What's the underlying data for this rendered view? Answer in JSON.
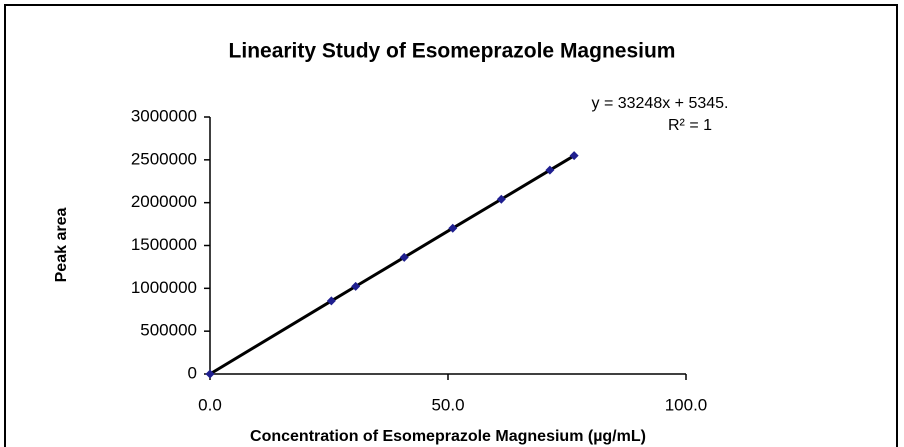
{
  "chart_data": {
    "type": "scatter",
    "title": "Linearity Study of Esomeprazole Magnesium",
    "x_label": "Concentration of  Esomeprazole Magnesium (µg/mL)",
    "y_label": "Peak area",
    "annotations": [
      "y = 33248x + 5345.",
      "R² = 1"
    ],
    "x": [
      0,
      25.5,
      30.6,
      40.8,
      51,
      61.2,
      71.4,
      76.5
    ],
    "series": [
      {
        "name": "Peak area",
        "color": "#1f1f8f",
        "line_color": "#000000",
        "values": [
          0,
          853169,
          1022734,
          1361863,
          1701993,
          2040122,
          2379252,
          2548817
        ]
      }
    ],
    "xlim": [
      0,
      100
    ],
    "xticks": [
      {
        "value": 0,
        "label": "0.0"
      },
      {
        "value": 50,
        "label": "50.0"
      },
      {
        "value": 100,
        "label": "100.0"
      }
    ],
    "ylim": [
      0,
      3000000
    ],
    "yticks": [
      0,
      500000,
      1000000,
      1500000,
      2000000,
      2500000,
      3000000
    ],
    "grid": false
  }
}
